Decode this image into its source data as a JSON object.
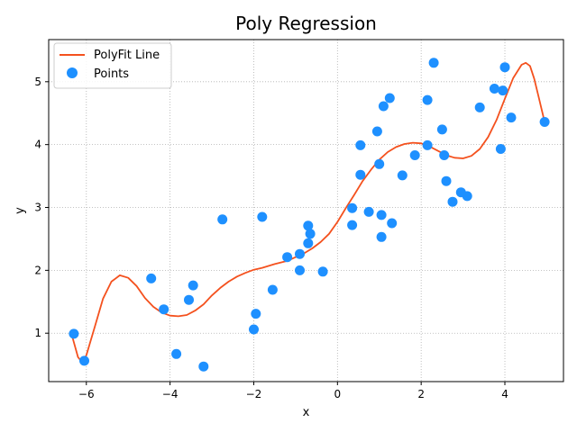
{
  "chart_data": {
    "type": "scatter",
    "title": "Poly Regression",
    "xlabel": "x",
    "ylabel": "y",
    "xlim": [
      -6.9,
      5.4
    ],
    "ylim": [
      0.23,
      5.67
    ],
    "xticks": [
      -6,
      -4,
      -2,
      0,
      2,
      4
    ],
    "yticks": [
      1,
      2,
      3,
      4,
      5
    ],
    "grid": true,
    "legend_position": "upper-left",
    "colors": {
      "line": "#f4511e",
      "points": "#1e90ff",
      "grid": "#b0b0b0"
    },
    "series": [
      {
        "name": "PolyFit Line",
        "kind": "line",
        "x": [
          -6.35,
          -6.2,
          -6.1,
          -6.0,
          -5.8,
          -5.6,
          -5.4,
          -5.2,
          -5.0,
          -4.8,
          -4.6,
          -4.4,
          -4.2,
          -4.0,
          -3.8,
          -3.6,
          -3.4,
          -3.2,
          -3.0,
          -2.8,
          -2.6,
          -2.4,
          -2.2,
          -2.0,
          -1.8,
          -1.5,
          -1.2,
          -1.0,
          -0.8,
          -0.6,
          -0.4,
          -0.2,
          0.0,
          0.2,
          0.4,
          0.6,
          0.8,
          1.0,
          1.2,
          1.4,
          1.6,
          1.8,
          2.0,
          2.2,
          2.4,
          2.6,
          2.8,
          3.0,
          3.2,
          3.4,
          3.6,
          3.8,
          4.0,
          4.2,
          4.4,
          4.5,
          4.6,
          4.7,
          4.8,
          4.95
        ],
        "y": [
          0.98,
          0.62,
          0.54,
          0.65,
          1.1,
          1.55,
          1.82,
          1.92,
          1.88,
          1.75,
          1.56,
          1.42,
          1.33,
          1.28,
          1.27,
          1.29,
          1.36,
          1.46,
          1.6,
          1.72,
          1.82,
          1.9,
          1.96,
          2.01,
          2.04,
          2.1,
          2.15,
          2.21,
          2.27,
          2.35,
          2.45,
          2.58,
          2.77,
          2.99,
          3.2,
          3.42,
          3.6,
          3.76,
          3.88,
          3.96,
          4.01,
          4.03,
          4.02,
          3.97,
          3.9,
          3.83,
          3.79,
          3.78,
          3.82,
          3.93,
          4.12,
          4.39,
          4.73,
          5.06,
          5.27,
          5.3,
          5.25,
          5.05,
          4.78,
          4.36
        ]
      },
      {
        "name": "Points",
        "kind": "scatter",
        "x": [
          -6.3,
          -6.05,
          -4.45,
          -4.15,
          -3.85,
          -3.55,
          -3.45,
          -3.2,
          -2.75,
          -2.0,
          -1.95,
          -1.8,
          -1.55,
          -1.2,
          -0.9,
          -0.9,
          -0.7,
          -0.7,
          -0.65,
          -0.35,
          0.35,
          0.35,
          0.55,
          0.55,
          0.75,
          0.95,
          1.0,
          1.05,
          1.05,
          1.1,
          1.25,
          1.3,
          1.55,
          1.85,
          2.15,
          2.15,
          2.3,
          2.5,
          2.55,
          2.6,
          2.75,
          2.95,
          3.1,
          3.4,
          3.75,
          3.9,
          3.95,
          4.0,
          4.15,
          4.95
        ],
        "y": [
          0.99,
          0.56,
          1.87,
          1.38,
          0.67,
          1.53,
          1.76,
          0.47,
          2.81,
          1.06,
          1.31,
          2.85,
          1.69,
          2.21,
          2.0,
          2.26,
          2.43,
          2.71,
          2.58,
          1.98,
          2.72,
          2.99,
          3.99,
          3.52,
          2.93,
          4.21,
          3.69,
          2.88,
          2.53,
          4.61,
          4.74,
          2.75,
          3.51,
          3.83,
          4.71,
          3.99,
          5.3,
          4.24,
          3.83,
          3.42,
          3.09,
          3.24,
          3.18,
          4.59,
          4.89,
          3.93,
          4.86,
          5.23,
          4.43,
          4.36
        ]
      }
    ]
  }
}
